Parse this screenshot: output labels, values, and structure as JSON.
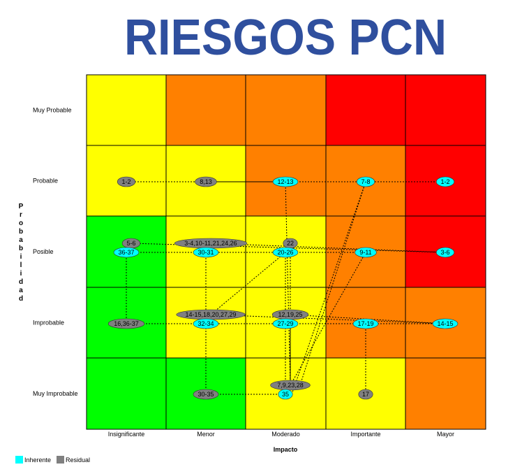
{
  "title": "RIESGOS PCN",
  "y_axis_label": "Probabilidad",
  "x_axis_label": "Impacto",
  "rows": [
    "Muy Probable",
    "Probable",
    "Posible",
    "Improbable",
    "Muy Improbable"
  ],
  "columns": [
    "Insignificante",
    "Menor",
    "Moderado",
    "Importante",
    "Mayor"
  ],
  "markers": [
    "1-2",
    "8,13",
    "12-13",
    "7-8",
    "1-2",
    "5-6",
    "36-37",
    "3-4,10-11,21,24,26",
    "30-31",
    "22",
    "20-26",
    "9-11",
    "3-6",
    "16,36-37",
    "14-15,18,20,27,29",
    "32-34",
    "12,19,25",
    "27-29",
    "17-19",
    "14-15",
    "7,9,23,28",
    "35",
    "30-35",
    "17"
  ],
  "legend": [
    "Inherente",
    "Residual"
  ]
}
